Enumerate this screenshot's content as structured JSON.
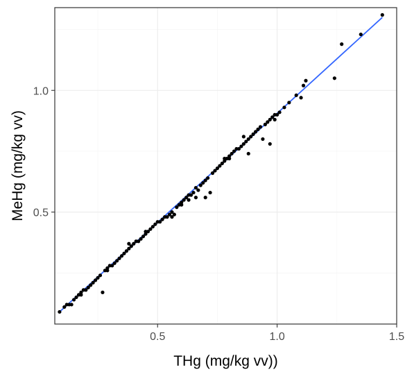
{
  "chart_data": {
    "type": "scatter",
    "title": "",
    "xlabel": "THg (mg/kg vv))",
    "ylabel": "MeHg (mg/kg vv)",
    "xlim": [
      0.07,
      1.5
    ],
    "ylim": [
      0.04,
      1.34
    ],
    "x_ticks": [
      {
        "value": 0.5,
        "label": "0.5"
      },
      {
        "value": 1.0,
        "label": "1.0"
      },
      {
        "value": 1.5,
        "label": "1.5"
      }
    ],
    "y_ticks": [
      {
        "value": 0.5,
        "label": "0.5"
      },
      {
        "value": 1.0,
        "label": "1.0"
      }
    ],
    "x_minor": [
      0.25,
      0.75,
      1.25
    ],
    "y_minor": [
      0.25,
      0.75,
      1.25
    ],
    "grid": true,
    "legend": "none",
    "point_color": "#000000",
    "fit_line": {
      "color": "#3366ff",
      "x": [
        0.09,
        1.44
      ],
      "y": [
        0.09,
        1.3
      ]
    },
    "points": [
      [
        0.09,
        0.09
      ],
      [
        0.11,
        0.11
      ],
      [
        0.12,
        0.12
      ],
      [
        0.13,
        0.12
      ],
      [
        0.14,
        0.12
      ],
      [
        0.15,
        0.14
      ],
      [
        0.16,
        0.15
      ],
      [
        0.17,
        0.16
      ],
      [
        0.18,
        0.17
      ],
      [
        0.19,
        0.18
      ],
      [
        0.2,
        0.18
      ],
      [
        0.21,
        0.19
      ],
      [
        0.22,
        0.2
      ],
      [
        0.23,
        0.21
      ],
      [
        0.24,
        0.22
      ],
      [
        0.25,
        0.23
      ],
      [
        0.26,
        0.24
      ],
      [
        0.27,
        0.17
      ],
      [
        0.28,
        0.26
      ],
      [
        0.29,
        0.27
      ],
      [
        0.3,
        0.28
      ],
      [
        0.31,
        0.28
      ],
      [
        0.32,
        0.29
      ],
      [
        0.33,
        0.3
      ],
      [
        0.34,
        0.31
      ],
      [
        0.35,
        0.32
      ],
      [
        0.36,
        0.33
      ],
      [
        0.37,
        0.34
      ],
      [
        0.38,
        0.35
      ],
      [
        0.39,
        0.36
      ],
      [
        0.4,
        0.37
      ],
      [
        0.41,
        0.38
      ],
      [
        0.42,
        0.38
      ],
      [
        0.43,
        0.39
      ],
      [
        0.44,
        0.4
      ],
      [
        0.45,
        0.41
      ],
      [
        0.46,
        0.42
      ],
      [
        0.47,
        0.43
      ],
      [
        0.48,
        0.44
      ],
      [
        0.49,
        0.45
      ],
      [
        0.5,
        0.46
      ],
      [
        0.51,
        0.46
      ],
      [
        0.52,
        0.47
      ],
      [
        0.53,
        0.48
      ],
      [
        0.54,
        0.48
      ],
      [
        0.55,
        0.49
      ],
      [
        0.56,
        0.5
      ],
      [
        0.57,
        0.49
      ],
      [
        0.58,
        0.52
      ],
      [
        0.59,
        0.53
      ],
      [
        0.6,
        0.54
      ],
      [
        0.61,
        0.55
      ],
      [
        0.62,
        0.56
      ],
      [
        0.63,
        0.57
      ],
      [
        0.64,
        0.57
      ],
      [
        0.65,
        0.58
      ],
      [
        0.66,
        0.6
      ],
      [
        0.67,
        0.59
      ],
      [
        0.68,
        0.61
      ],
      [
        0.69,
        0.62
      ],
      [
        0.7,
        0.63
      ],
      [
        0.71,
        0.64
      ],
      [
        0.72,
        0.58
      ],
      [
        0.73,
        0.66
      ],
      [
        0.74,
        0.67
      ],
      [
        0.75,
        0.68
      ],
      [
        0.76,
        0.69
      ],
      [
        0.77,
        0.7
      ],
      [
        0.78,
        0.71
      ],
      [
        0.79,
        0.72
      ],
      [
        0.8,
        0.73
      ],
      [
        0.81,
        0.74
      ],
      [
        0.82,
        0.75
      ],
      [
        0.83,
        0.76
      ],
      [
        0.84,
        0.76
      ],
      [
        0.85,
        0.77
      ],
      [
        0.86,
        0.78
      ],
      [
        0.87,
        0.79
      ],
      [
        0.88,
        0.8
      ],
      [
        0.89,
        0.81
      ],
      [
        0.9,
        0.82
      ],
      [
        0.91,
        0.83
      ],
      [
        0.92,
        0.84
      ],
      [
        0.93,
        0.85
      ],
      [
        0.94,
        0.8
      ],
      [
        0.95,
        0.86
      ],
      [
        0.96,
        0.87
      ],
      [
        0.97,
        0.88
      ],
      [
        0.98,
        0.89
      ],
      [
        0.99,
        0.9
      ],
      [
        1.0,
        0.9
      ],
      [
        1.01,
        0.91
      ],
      [
        1.03,
        0.93
      ],
      [
        1.05,
        0.95
      ],
      [
        1.08,
        0.98
      ],
      [
        1.1,
        0.97
      ],
      [
        1.11,
        1.02
      ],
      [
        1.12,
        1.04
      ],
      [
        1.24,
        1.05
      ],
      [
        1.27,
        1.19
      ],
      [
        1.35,
        1.23
      ],
      [
        1.44,
        1.31
      ],
      [
        0.18,
        0.16
      ],
      [
        0.29,
        0.26
      ],
      [
        0.38,
        0.37
      ],
      [
        0.45,
        0.42
      ],
      [
        0.56,
        0.48
      ],
      [
        0.6,
        0.53
      ],
      [
        0.63,
        0.55
      ],
      [
        0.66,
        0.56
      ],
      [
        0.7,
        0.56
      ],
      [
        0.78,
        0.72
      ],
      [
        0.8,
        0.72
      ],
      [
        0.86,
        0.81
      ],
      [
        0.88,
        0.74
      ],
      [
        0.97,
        0.78
      ],
      [
        0.99,
        0.88
      ]
    ]
  }
}
